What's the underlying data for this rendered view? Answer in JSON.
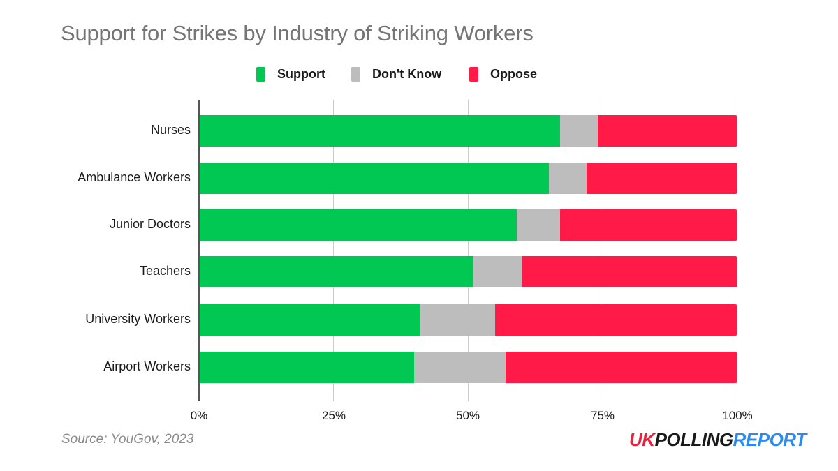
{
  "chart_data": {
    "type": "bar",
    "orientation": "horizontal",
    "stacked": "percent",
    "title": "Support for Strikes by Industry of Striking Workers",
    "xlabel": "",
    "ylabel": "",
    "xlim": [
      0,
      100
    ],
    "x_ticks": [
      "0%",
      "25%",
      "50%",
      "75%",
      "100%"
    ],
    "grid": true,
    "legend_position": "top",
    "categories": [
      "Nurses",
      "Ambulance Workers",
      "Junior Doctors",
      "Teachers",
      "University Workers",
      "Airport Workers"
    ],
    "series": [
      {
        "name": "Support",
        "color": "#00c853",
        "values": [
          67,
          65,
          59,
          51,
          41,
          40
        ]
      },
      {
        "name": "Don't Know",
        "color": "#bdbdbd",
        "values": [
          7,
          7,
          8,
          9,
          14,
          17
        ]
      },
      {
        "name": "Oppose",
        "color": "#ff1a47",
        "values": [
          26,
          28,
          33,
          40,
          45,
          43
        ]
      }
    ]
  },
  "title": "Support for Strikes by Industry of Striking Workers",
  "legend": [
    {
      "label": "Support",
      "color": "#00c853"
    },
    {
      "label": "Don't Know",
      "color": "#bdbdbd"
    },
    {
      "label": "Oppose",
      "color": "#ff1a47"
    }
  ],
  "axis": {
    "ticks": [
      "0%",
      "25%",
      "50%",
      "75%",
      "100%"
    ]
  },
  "footer": {
    "source": "Source: YouGov, 2023",
    "logo": {
      "part1": "UK",
      "part2": "POLLING",
      "part3": "REPORT"
    }
  }
}
